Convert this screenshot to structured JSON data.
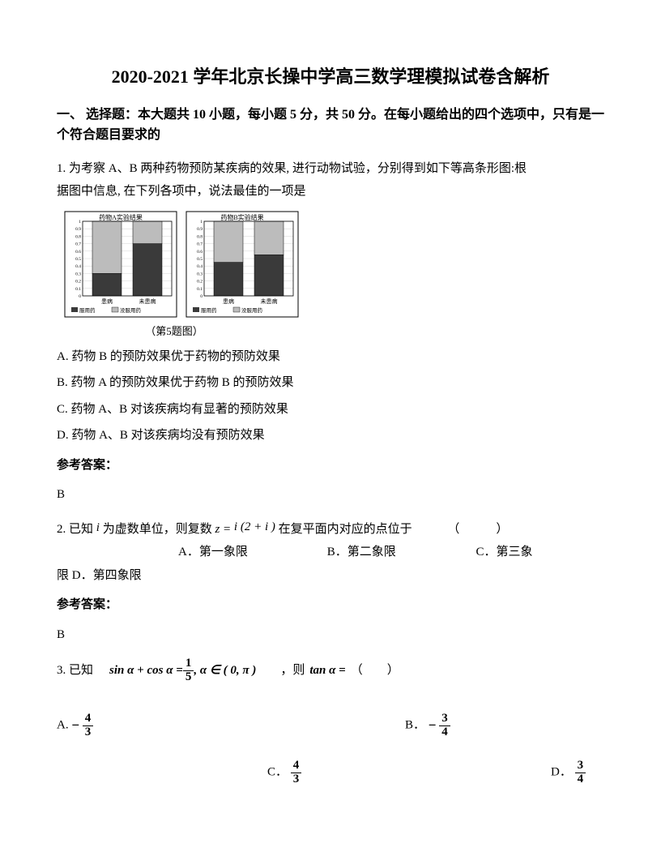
{
  "title": "2020-2021 学年北京长操中学高三数学理模拟试卷含解析",
  "section1_head": "一、 选择题：本大题共 10 小题，每小题 5 分，共 50 分。在每小题给出的四个选项中，只有是一个符合题目要求的",
  "q1": {
    "stem_a": "1. 为考察 A、B 两种药物预防某疾病的效果, 进行动物试验，分别得到如下等高条形图:根",
    "stem_b": "据图中信息, 在下列各项中，说法最佳的一项是",
    "caption": "（第5题图）",
    "optA": "A. 药物 B 的预防效果优于药物的预防效果",
    "optB": "B. 药物 A 的预防效果优于药物 B 的预防效果",
    "optC": "C. 药物 A、B 对该疾病均有显著的预防效果",
    "optD": "D. 药物 A、B 对该疾病均没有预防效果",
    "answer_label": "参考答案：",
    "answer": "B",
    "chart": {
      "panel_titles": [
        "药物A实验结果",
        "药物B实验结果"
      ],
      "x_labels": [
        "患病",
        "未患病"
      ],
      "legend": [
        "服用药",
        "没服用药"
      ],
      "y_ticks": [
        0,
        0.1,
        0.2,
        0.3,
        0.4,
        0.5,
        0.6,
        0.7,
        0.8,
        0.9,
        1
      ],
      "panelA": {
        "bar1": [
          0.3,
          0.7
        ],
        "bar2": [
          0.7,
          0.3
        ]
      },
      "panelB": {
        "bar1": [
          0.45,
          0.55
        ],
        "bar2": [
          0.55,
          0.45
        ]
      },
      "colors": {
        "lower": "#3a3a3a",
        "upper": "#bcbcbc",
        "border": "#000000",
        "bg": "#f6f6f6"
      }
    }
  },
  "q2": {
    "stem_pre": "2. 已知",
    "i_label": "i",
    "stem_mid": "为虚数单位，则复数",
    "eq_left": "z =",
    "eq_right": "i (2 + i )",
    "stem_post": "在复平面内对应的点位于",
    "paren": "（　　　）",
    "optA": "A．第一象限",
    "optB": "B．第二象限",
    "optC": "C．第三象",
    "cont": "限        D．第四象限",
    "answer_label": "参考答案：",
    "answer": "B"
  },
  "q3": {
    "stem_pre": "3. 已知",
    "cond_left": "sin α + cos α =",
    "frac1": {
      "num": "1",
      "den": "5"
    },
    "cond_right": ", α ∈ ( 0, π )",
    "mid": "，则",
    "tan": "tan α =",
    "paren": "（　　）",
    "A_label": "A.",
    "A_sign": "−",
    "A_frac": {
      "num": "4",
      "den": "3"
    },
    "B_label": "B．",
    "B_sign": "−",
    "B_frac": {
      "num": "3",
      "den": "4"
    },
    "C_label": "C．",
    "C_frac": {
      "num": "4",
      "den": "3"
    },
    "D_label": "D．",
    "D_frac": {
      "num": "3",
      "den": "4"
    }
  }
}
